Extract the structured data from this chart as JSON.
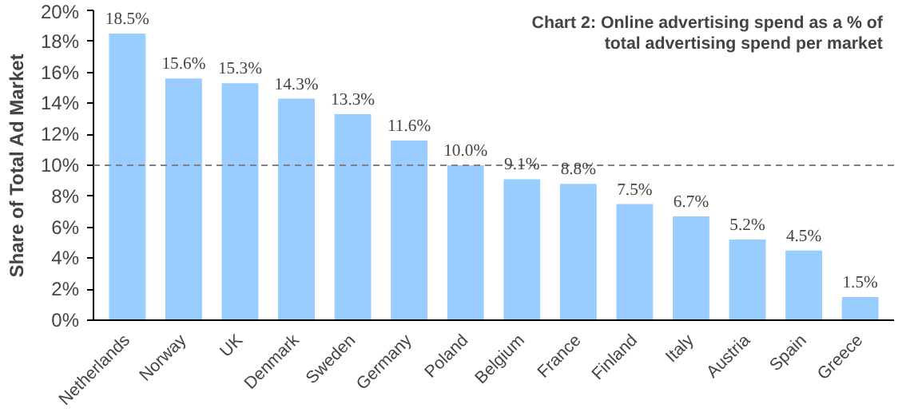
{
  "chart_data": {
    "type": "bar",
    "title": "Chart 2: Online advertising spend as a % of total advertising spend per market",
    "ylabel": "Share of Total Ad Market",
    "categories": [
      "Netherlands",
      "Norway",
      "UK",
      "Denmark",
      "Sweden",
      "Germany",
      "Poland",
      "Belgium",
      "France",
      "Finland",
      "Italy",
      "Austria",
      "Spain",
      "Greece"
    ],
    "values": [
      18.5,
      15.6,
      15.3,
      14.3,
      13.3,
      11.6,
      10.0,
      9.1,
      8.8,
      7.5,
      6.7,
      5.2,
      4.5,
      1.5
    ],
    "value_labels": [
      "18.5%",
      "15.6%",
      "15.3%",
      "14.3%",
      "13.3%",
      "11.6%",
      "10.0%",
      "9.1%",
      "8.8%",
      "7.5%",
      "6.7%",
      "5.2%",
      "4.5%",
      "1.5%"
    ],
    "color": "#99ccff",
    "ylim": [
      0,
      20
    ],
    "yticks": [
      {
        "value": 0,
        "label": "0%"
      },
      {
        "value": 2,
        "label": "2%"
      },
      {
        "value": 4,
        "label": "4%"
      },
      {
        "value": 6,
        "label": "6%"
      },
      {
        "value": 8,
        "label": "8%"
      },
      {
        "value": 10,
        "label": "10%"
      },
      {
        "value": 12,
        "label": "12%"
      },
      {
        "value": 14,
        "label": "14%"
      },
      {
        "value": 16,
        "label": "16%"
      },
      {
        "value": 18,
        "label": "18%"
      },
      {
        "value": 20,
        "label": "20%"
      }
    ],
    "ref_lines": [
      {
        "axis": "y",
        "value": 10,
        "color": "#808080",
        "line_style": "dashed"
      }
    ],
    "grid": false
  }
}
